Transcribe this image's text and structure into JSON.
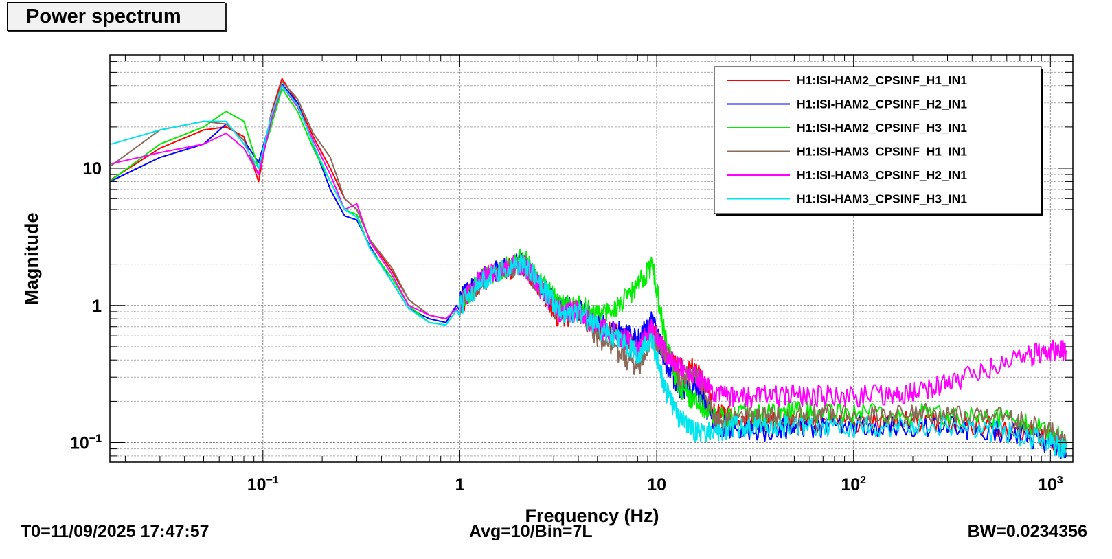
{
  "title": "Power spectrum",
  "footer": {
    "left": "T0=11/09/2025 17:47:57",
    "center": "Avg=10/Bin=7L",
    "right": "BW=0.0234356"
  },
  "chart_data": {
    "type": "line",
    "title": "Power spectrum",
    "xlabel": "Frequency (Hz)",
    "ylabel": "Magnitude",
    "xscale": "log",
    "yscale": "log",
    "xlim": [
      0.0167,
      1300
    ],
    "ylim": [
      0.072,
      67
    ],
    "grid": true,
    "legend_position": "top-right",
    "x_ticks": [
      {
        "value": 0.1,
        "base": "10",
        "exp": "−1"
      },
      {
        "value": 1,
        "base": "1",
        "exp": ""
      },
      {
        "value": 10,
        "base": "10",
        "exp": ""
      },
      {
        "value": 100,
        "base": "10",
        "exp": "2"
      },
      {
        "value": 1000,
        "base": "10",
        "exp": "3"
      }
    ],
    "y_ticks": [
      {
        "value": 0.1,
        "base": "10",
        "exp": "−1"
      },
      {
        "value": 1,
        "base": "1",
        "exp": ""
      },
      {
        "value": 10,
        "base": "10",
        "exp": ""
      }
    ],
    "series": [
      {
        "name": "H1:ISI-HAM2_CPSINF_H1_IN1",
        "color": "#ff0000",
        "x": [
          0.017,
          0.03,
          0.05,
          0.065,
          0.08,
          0.095,
          0.11,
          0.125,
          0.15,
          0.18,
          0.22,
          0.26,
          0.3,
          0.35,
          0.45,
          0.55,
          0.7,
          0.85,
          1.0,
          1.3,
          1.7,
          2.1,
          2.6,
          3.2,
          4.0,
          5.0,
          6.5,
          8.0,
          9.5,
          11,
          13,
          16,
          20,
          25,
          35,
          50,
          80,
          150,
          300,
          600,
          1000,
          1200
        ],
        "y": [
          8.3,
          14,
          19,
          20,
          17,
          8,
          25,
          45,
          30,
          17,
          10,
          6,
          5,
          3,
          1.8,
          1.1,
          0.85,
          0.8,
          1.0,
          1.5,
          1.8,
          2.0,
          1.3,
          0.8,
          0.9,
          0.7,
          0.6,
          0.5,
          0.7,
          0.45,
          0.35,
          0.35,
          0.16,
          0.15,
          0.14,
          0.14,
          0.14,
          0.14,
          0.14,
          0.13,
          0.11,
          0.09
        ]
      },
      {
        "name": "H1:ISI-HAM2_CPSINF_H2_IN1",
        "color": "#0000ff",
        "x": [
          0.017,
          0.03,
          0.05,
          0.065,
          0.08,
          0.095,
          0.11,
          0.125,
          0.15,
          0.18,
          0.22,
          0.26,
          0.3,
          0.35,
          0.45,
          0.55,
          0.7,
          0.85,
          1.0,
          1.3,
          1.7,
          2.1,
          2.6,
          3.2,
          4.0,
          5.0,
          6.5,
          8.0,
          9.5,
          11,
          13,
          16,
          20,
          25,
          35,
          50,
          80,
          150,
          300,
          600,
          1000,
          1200
        ],
        "y": [
          8.1,
          12,
          15,
          21,
          16,
          11,
          23,
          41,
          30,
          15,
          7,
          4.5,
          4.2,
          2.7,
          1.5,
          0.95,
          0.8,
          0.75,
          1.1,
          1.6,
          1.9,
          2.1,
          1.4,
          0.95,
          0.95,
          0.75,
          0.65,
          0.55,
          0.8,
          0.4,
          0.25,
          0.25,
          0.13,
          0.13,
          0.12,
          0.13,
          0.13,
          0.13,
          0.13,
          0.12,
          0.1,
          0.085
        ]
      },
      {
        "name": "H1:ISI-HAM2_CPSINF_H3_IN1",
        "color": "#00ee00",
        "x": [
          0.017,
          0.03,
          0.05,
          0.065,
          0.08,
          0.095,
          0.11,
          0.125,
          0.15,
          0.18,
          0.22,
          0.26,
          0.3,
          0.35,
          0.45,
          0.55,
          0.7,
          0.85,
          1.0,
          1.3,
          1.7,
          2.1,
          2.6,
          3.2,
          4.0,
          5.0,
          6.5,
          8.0,
          9.5,
          11,
          13,
          16,
          20,
          25,
          35,
          50,
          80,
          150,
          300,
          600,
          1000,
          1200
        ],
        "y": [
          8.2,
          15,
          20,
          26,
          22,
          10,
          20,
          38,
          26,
          14,
          8,
          5,
          4.6,
          2.6,
          1.6,
          1.0,
          0.75,
          0.72,
          1.0,
          1.6,
          1.9,
          2.2,
          1.5,
          1.0,
          1.0,
          0.85,
          1.0,
          1.4,
          2.0,
          0.6,
          0.25,
          0.2,
          0.15,
          0.16,
          0.16,
          0.17,
          0.16,
          0.16,
          0.16,
          0.15,
          0.12,
          0.1
        ]
      },
      {
        "name": "H1:ISI-HAM3_CPSINF_H1_IN1",
        "color": "#8b6a5a",
        "x": [
          0.017,
          0.03,
          0.05,
          0.065,
          0.08,
          0.095,
          0.11,
          0.125,
          0.15,
          0.18,
          0.22,
          0.26,
          0.3,
          0.35,
          0.45,
          0.55,
          0.7,
          0.85,
          1.0,
          1.3,
          1.7,
          2.1,
          2.6,
          3.2,
          4.0,
          5.0,
          6.5,
          8.0,
          9.5,
          11,
          13,
          16,
          20,
          25,
          35,
          50,
          80,
          150,
          300,
          600,
          1000,
          1200
        ],
        "y": [
          10.5,
          19,
          22,
          21,
          16,
          9,
          22,
          43,
          32,
          18,
          12,
          6,
          5,
          3,
          1.9,
          1.1,
          0.85,
          0.8,
          1.0,
          1.5,
          1.8,
          2.0,
          1.3,
          0.85,
          0.9,
          0.6,
          0.45,
          0.35,
          0.6,
          0.45,
          0.3,
          0.3,
          0.15,
          0.15,
          0.15,
          0.16,
          0.16,
          0.16,
          0.16,
          0.15,
          0.12,
          0.1
        ]
      },
      {
        "name": "H1:ISI-HAM3_CPSINF_H2_IN1",
        "color": "#ff00ff",
        "x": [
          0.017,
          0.03,
          0.05,
          0.065,
          0.08,
          0.095,
          0.11,
          0.125,
          0.15,
          0.18,
          0.22,
          0.26,
          0.3,
          0.35,
          0.45,
          0.55,
          0.7,
          0.85,
          1.0,
          1.3,
          1.7,
          2.1,
          2.6,
          3.2,
          4.0,
          5.0,
          6.5,
          8.0,
          9.5,
          11,
          13,
          16,
          20,
          25,
          35,
          50,
          80,
          150,
          200,
          300,
          500,
          800,
          1000,
          1200
        ],
        "y": [
          10.8,
          13,
          15,
          18,
          14,
          9,
          22,
          40,
          28,
          16,
          9,
          5,
          5.5,
          2.9,
          1.7,
          1.0,
          0.85,
          0.8,
          1.0,
          1.6,
          1.9,
          2.0,
          1.3,
          0.9,
          0.9,
          0.7,
          0.6,
          0.5,
          0.7,
          0.45,
          0.35,
          0.3,
          0.22,
          0.21,
          0.22,
          0.22,
          0.22,
          0.22,
          0.23,
          0.27,
          0.35,
          0.43,
          0.47,
          0.47
        ]
      },
      {
        "name": "H1:ISI-HAM3_CPSINF_H3_IN1",
        "color": "#00e5ee",
        "x": [
          0.017,
          0.03,
          0.05,
          0.065,
          0.08,
          0.095,
          0.11,
          0.125,
          0.15,
          0.18,
          0.22,
          0.26,
          0.3,
          0.35,
          0.45,
          0.55,
          0.7,
          0.85,
          1.0,
          1.3,
          1.7,
          2.1,
          2.6,
          3.2,
          4.0,
          5.0,
          6.5,
          8.0,
          9.5,
          11,
          13,
          16,
          20,
          25,
          35,
          50,
          80,
          150,
          300,
          600,
          1000,
          1200
        ],
        "y": [
          15,
          19,
          22,
          22,
          15,
          10,
          24,
          40,
          29,
          15,
          8,
          5,
          4.4,
          2.6,
          1.5,
          0.95,
          0.75,
          0.72,
          1.0,
          1.5,
          1.8,
          2.0,
          1.4,
          0.9,
          0.9,
          0.7,
          0.55,
          0.45,
          0.55,
          0.25,
          0.15,
          0.12,
          0.12,
          0.13,
          0.13,
          0.13,
          0.13,
          0.13,
          0.13,
          0.12,
          0.1,
          0.09
        ]
      }
    ]
  }
}
